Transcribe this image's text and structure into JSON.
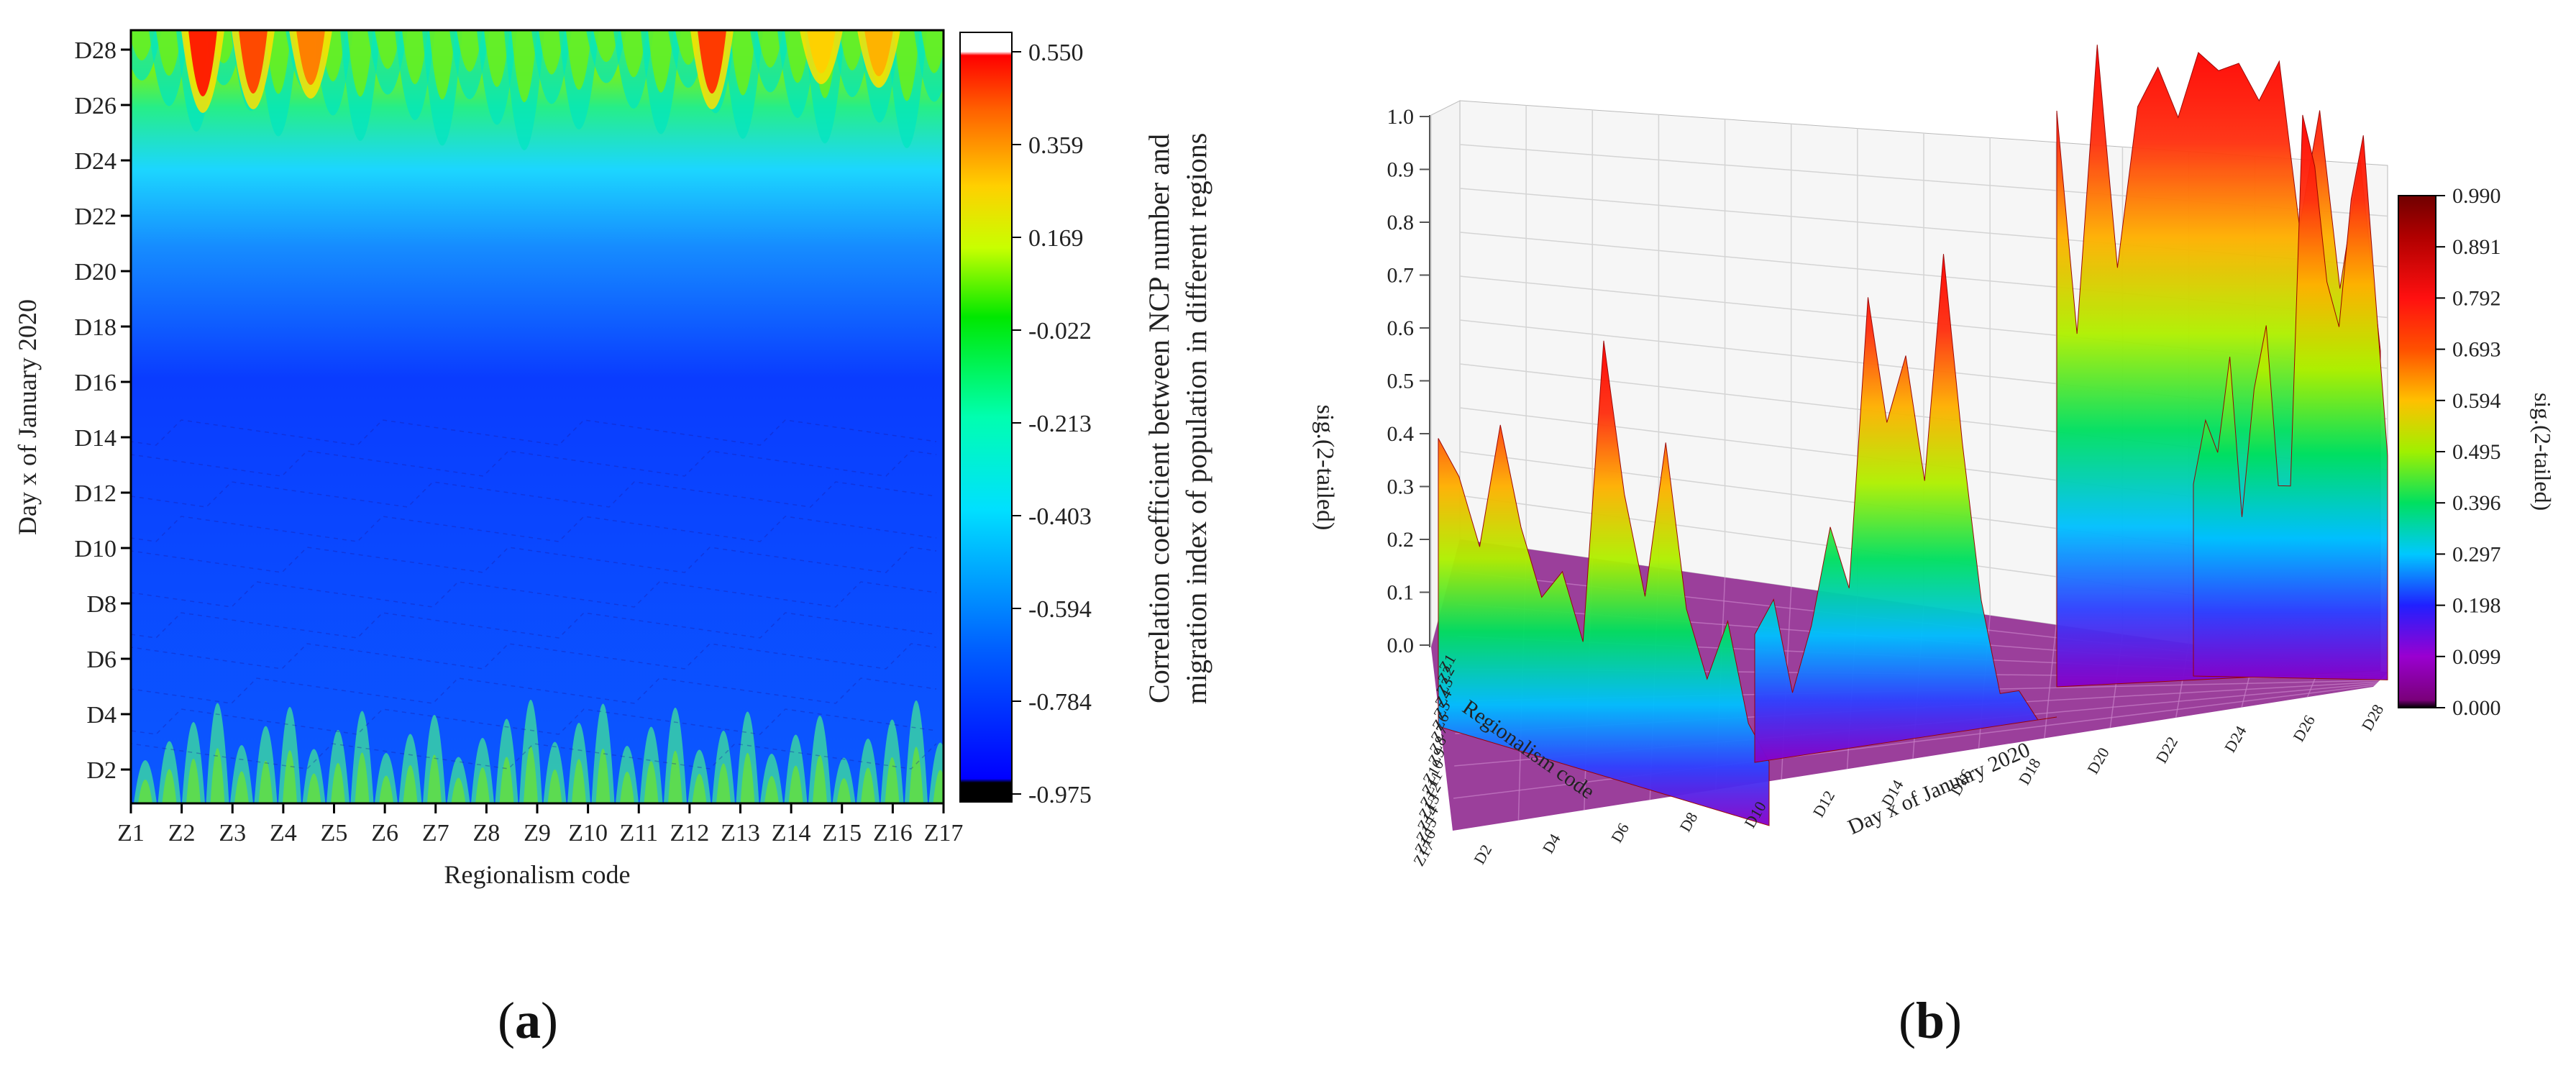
{
  "panel_a": {
    "label_open": "(",
    "label_letter": "a",
    "label_close": ")"
  },
  "panel_b": {
    "label_open": "(",
    "label_letter": "b",
    "label_close": ")"
  },
  "chart_data": [
    {
      "type": "heatmap",
      "title": "",
      "xlabel": "Regionalism code",
      "ylabel": "Day x of January 2020",
      "x_ticks": [
        "Z1",
        "Z2",
        "Z3",
        "Z4",
        "Z5",
        "Z6",
        "Z7",
        "Z8",
        "Z9",
        "Z10",
        "Z11",
        "Z12",
        "Z13",
        "Z14",
        "Z15",
        "Z16",
        "Z17"
      ],
      "y_ticks": [
        "D2",
        "D4",
        "D6",
        "D8",
        "D10",
        "D12",
        "D14",
        "D16",
        "D18",
        "D20",
        "D22",
        "D24",
        "D26",
        "D28"
      ],
      "colorbar_label_line1": "Correlation coefficient between NCP number and",
      "colorbar_label_line2": "migration index of population in different regions",
      "colorbar_ticks": [
        "0.550",
        "0.359",
        "0.169",
        "-0.022",
        "-0.213",
        "-0.403",
        "-0.594",
        "-0.784",
        "-0.975"
      ],
      "zlim": [
        -0.975,
        0.55
      ],
      "colors": {
        "low": "#0000ff",
        "high": "#ff0000"
      }
    },
    {
      "type": "area",
      "title": "",
      "zlabel": "sig.(2-tailed)",
      "xlabel": "Regionalism code",
      "ylabel": "Day x of January 2020",
      "z_ticks": [
        "0.0",
        "0.1",
        "0.2",
        "0.3",
        "0.4",
        "0.5",
        "0.6",
        "0.7",
        "0.8",
        "0.9",
        "1.0"
      ],
      "x_ticks": [
        "Z17",
        "Z16",
        "Z15",
        "Z14",
        "Z13",
        "Z12",
        "Z11",
        "Z10",
        "Z9",
        "Z8",
        "Z7",
        "Z6",
        "Z5",
        "Z4",
        "Z3",
        "Z2",
        "Z1"
      ],
      "y_ticks": [
        "D2",
        "D4",
        "D6",
        "D8",
        "D10",
        "D12",
        "D14",
        "D16",
        "D18",
        "D20",
        "D22",
        "D24",
        "D26",
        "D28"
      ],
      "colorbar_label": "sig.(2-tailed)",
      "colorbar_ticks": [
        "0.990",
        "0.891",
        "0.792",
        "0.693",
        "0.594",
        "0.495",
        "0.396",
        "0.297",
        "0.198",
        "0.099",
        "0.000"
      ],
      "zlim": [
        0,
        1.0
      ],
      "series": [
        {
          "values": [
            0.45,
            0.4,
            0.3,
            0.5,
            0.35,
            0.25,
            0.3,
            0.2,
            0.68,
            0.45,
            0.3,
            0.55,
            0.3,
            0.2,
            0.3,
            0.15,
            0.1
          ]
        },
        {
          "values": [
            0.2,
            0.25,
            0.1,
            0.2,
            0.35,
            0.25,
            0.7,
            0.5,
            0.6,
            0.4,
            0.75,
            0.45,
            0.2,
            0.05,
            0.05,
            0.0,
            0.0
          ]
        },
        {
          "values": [
            0.9,
            0.55,
            1.0,
            0.65,
            0.9,
            0.96,
            0.88,
            0.98,
            0.95,
            0.96,
            0.9,
            0.96,
            0.7,
            0.88,
            0.6,
            0.8,
            0.5
          ]
        },
        {
          "values": [
            0.3,
            0.4,
            0.35,
            0.5,
            0.25,
            0.45,
            0.55,
            0.3,
            0.3,
            0.88,
            0.8,
            0.62,
            0.55,
            0.75,
            0.85,
            0.6,
            0.35
          ]
        }
      ]
    }
  ]
}
